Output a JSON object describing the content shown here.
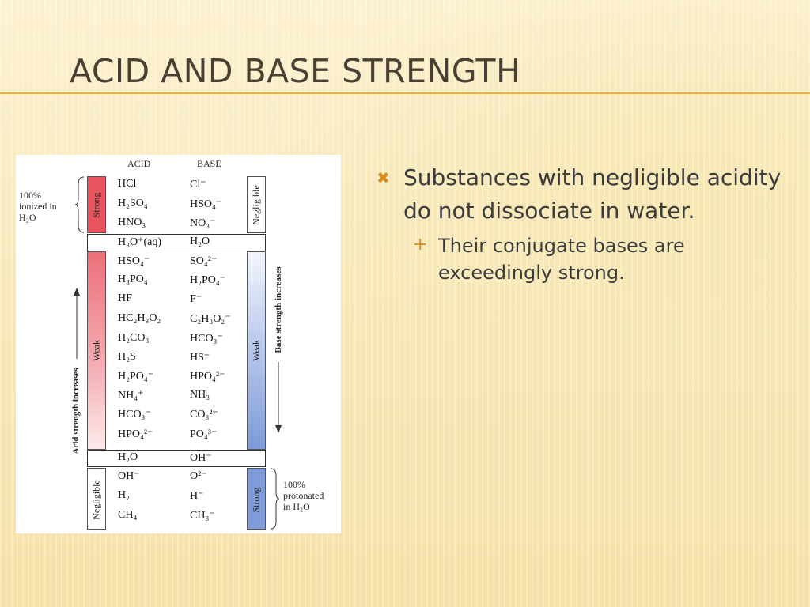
{
  "slide": {
    "title": "Acid and Base Strength"
  },
  "table": {
    "acid_header": "ACID",
    "base_header": "BASE",
    "acid_bar_top_label": "Strong",
    "acid_bar_mid_label": "Weak",
    "acid_bar_bottom_label": "Negligible",
    "base_bar_top_label": "Negligible",
    "base_bar_mid_label": "Weak",
    "base_bar_bottom_label": "Strong",
    "left_note": [
      "100%",
      "ionized in",
      "H₂O"
    ],
    "right_note": [
      "100%",
      "protonated",
      "in H₂O"
    ],
    "acid_axis": "Acid strength increases",
    "base_axis": "Base strength increases",
    "rows": [
      {
        "acid": "HCl",
        "base": "Cl⁻"
      },
      {
        "acid": "H₂SO₄",
        "base": "HSO₄⁻"
      },
      {
        "acid": "HNO₃",
        "base": "NO₃⁻"
      },
      {
        "acid": "H₃O⁺(aq)",
        "base": "H₂O"
      },
      {
        "acid": "HSO₄⁻",
        "base": "SO₄²⁻"
      },
      {
        "acid": "H₃PO₄",
        "base": "H₂PO₄⁻"
      },
      {
        "acid": "HF",
        "base": "F⁻"
      },
      {
        "acid": "HC₂H₃O₂",
        "base": "C₂H₃O₂⁻"
      },
      {
        "acid": "H₂CO₃",
        "base": "HCO₃⁻"
      },
      {
        "acid": "H₂S",
        "base": "HS⁻"
      },
      {
        "acid": "H₂PO₄⁻",
        "base": "HPO₄²⁻"
      },
      {
        "acid": "NH₄⁺",
        "base": "NH₃"
      },
      {
        "acid": "HCO₃⁻",
        "base": "CO₃²⁻"
      },
      {
        "acid": "HPO₄²⁻",
        "base": "PO₄³⁻"
      },
      {
        "acid": "H₂O",
        "base": "OH⁻"
      },
      {
        "acid": "OH⁻",
        "base": "O²⁻"
      },
      {
        "acid": "H₂",
        "base": "H⁻"
      },
      {
        "acid": "CH₄",
        "base": "CH₃⁻"
      }
    ]
  },
  "bullets": {
    "main": "Substances with negligible acidity do not dissociate in water.",
    "sub": "Their conjugate bases are exceedingly strong.",
    "main_icon": "x-mark-icon",
    "sub_icon": "plus-icon"
  },
  "colors": {
    "accent": "#d78d1e",
    "rule": "#f0b030",
    "acid_red": "#e8505a",
    "base_blue": "#7f9bd8"
  }
}
